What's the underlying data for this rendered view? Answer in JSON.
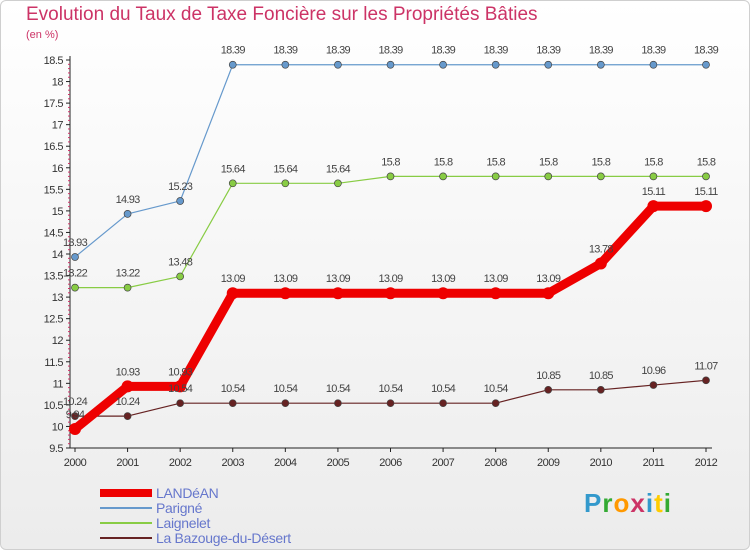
{
  "title": "Evolution du Taux de Taxe Foncière sur les Propriétés Bâties",
  "unit_label": "(en %)",
  "logo": {
    "letters": [
      "P",
      "r",
      "o",
      "x",
      "i",
      "t",
      "i"
    ],
    "colors": [
      "#3399cc",
      "#33aa33",
      "#ff9900",
      "#cc3366",
      "#3399cc",
      "#ffcc00",
      "#33aa33"
    ]
  },
  "chart_data": {
    "type": "line",
    "title": "Evolution du Taux de Taxe Foncière sur les Propriétés Bâties",
    "ylabel": "(en %)",
    "xlabel": "",
    "x": [
      "2000",
      "2001",
      "2002",
      "2003",
      "2004",
      "2005",
      "2006",
      "2007",
      "2008",
      "2009",
      "2010",
      "2011",
      "2012"
    ],
    "ylim": [
      9.5,
      18.5
    ],
    "yticks": [
      "9.5",
      "10",
      "10.5",
      "11",
      "11.5",
      "12",
      "12.5",
      "13",
      "13.5",
      "14",
      "14.5",
      "15",
      "15.5",
      "16",
      "16.5",
      "17",
      "17.5",
      "18",
      "18.5"
    ],
    "grid": false,
    "legend_position": "bottom-left",
    "series": [
      {
        "name": "LANDéAN",
        "color": "#ee0000",
        "emphasis": true,
        "values": [
          9.94,
          10.93,
          10.93,
          13.09,
          13.09,
          13.09,
          13.09,
          13.09,
          13.09,
          13.09,
          13.78,
          15.11,
          15.11
        ],
        "labels": [
          "9.94",
          "10.93",
          "10.93",
          "13.09",
          "13.09",
          "13.09",
          "13.09",
          "13.09",
          "13.09",
          "13.09",
          "13.78",
          "15.11",
          "15.11"
        ]
      },
      {
        "name": "Parigné",
        "color": "#6699cc",
        "values": [
          13.93,
          14.93,
          15.23,
          18.39,
          18.39,
          18.39,
          18.39,
          18.39,
          18.39,
          18.39,
          18.39,
          18.39,
          18.39
        ],
        "labels": [
          "13.93",
          "14.93",
          "15.23",
          "18.39",
          "18.39",
          "18.39",
          "18.39",
          "18.39",
          "18.39",
          "18.39",
          "18.39",
          "18.39",
          "18.39"
        ]
      },
      {
        "name": "Laignelet",
        "color": "#88cc44",
        "values": [
          13.22,
          13.22,
          13.48,
          15.64,
          15.64,
          15.64,
          15.8,
          15.8,
          15.8,
          15.8,
          15.8,
          15.8,
          15.8
        ],
        "labels": [
          "13.22",
          "13.22",
          "13.48",
          "15.64",
          "15.64",
          "15.64",
          "15.8",
          "15.8",
          "15.8",
          "15.8",
          "15.8",
          "15.8",
          "15.8"
        ]
      },
      {
        "name": "La Bazouge-du-Désert",
        "color": "#662222",
        "values": [
          10.24,
          10.24,
          10.54,
          10.54,
          10.54,
          10.54,
          10.54,
          10.54,
          10.54,
          10.85,
          10.85,
          10.96,
          11.07
        ],
        "labels": [
          "10.24",
          "10.24",
          "10.54",
          "10.54",
          "10.54",
          "10.54",
          "10.54",
          "10.54",
          "10.54",
          "10.85",
          "10.85",
          "10.96",
          "11.07"
        ]
      }
    ]
  }
}
